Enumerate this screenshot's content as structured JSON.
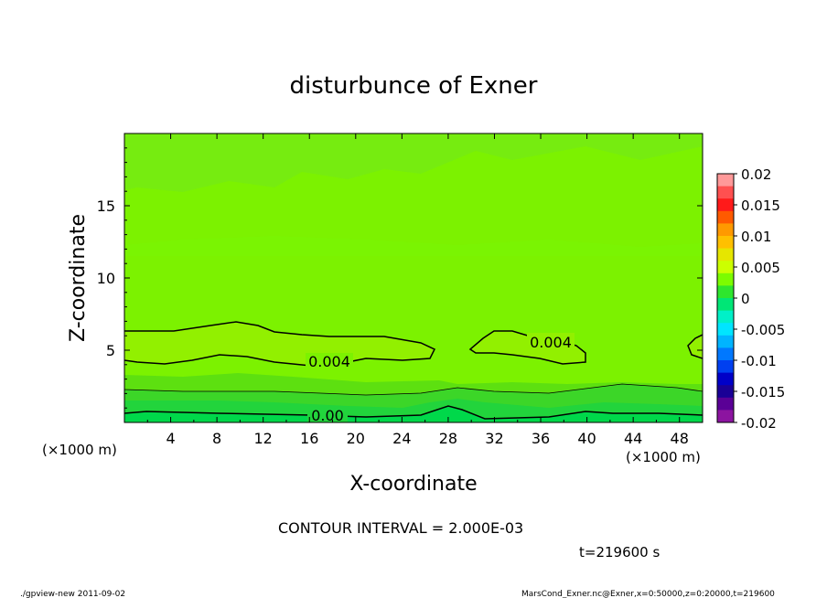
{
  "chart_data": {
    "type": "heatmap",
    "title": "disturbunce of Exner",
    "xlabel": "X-coordinate",
    "ylabel": "Z-coordinate",
    "x_unit": "(×1000 m)",
    "y_unit": "(×1000 m)",
    "xlim": [
      0,
      50
    ],
    "ylim": [
      0,
      20
    ],
    "x_ticks": [
      4,
      8,
      12,
      16,
      20,
      24,
      28,
      32,
      36,
      40,
      44,
      48
    ],
    "y_ticks": [
      5,
      10,
      15
    ],
    "colorbar": {
      "min": -0.02,
      "max": 0.02,
      "labels": [
        "0.02",
        "0.015",
        "0.01",
        "0.005",
        "0",
        "-0.005",
        "-0.01",
        "-0.015",
        "-0.02"
      ],
      "colors": [
        "#ff9999",
        "#ff5050",
        "#ff1a1a",
        "#ff5a00",
        "#ff9900",
        "#ffc000",
        "#e6e600",
        "#ccff00",
        "#7cfc00",
        "#2ee62e",
        "#00e676",
        "#00f0c8",
        "#00e5ff",
        "#00b4ff",
        "#0078ff",
        "#0040f0",
        "#0000c8",
        "#1a0096",
        "#5a0096",
        "#8c14a0"
      ]
    },
    "contour_labels": [
      "0.004",
      "0.004",
      "0.00"
    ],
    "contour_interval_text": "CONTOUR INTERVAL = 2.000E-03",
    "time_text": "t=219600 s"
  },
  "footer": {
    "left": "./gpview-new  2011-09-02",
    "right": "MarsCond_Exner.nc@Exner,x=0:50000,z=0:20000,t=219600"
  }
}
